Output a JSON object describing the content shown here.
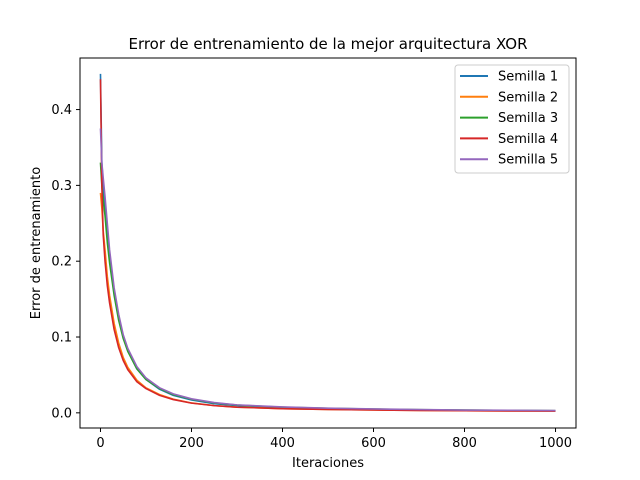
{
  "chart_data": {
    "type": "line",
    "title": "Error de entrenamiento de la mejor arquitectura XOR",
    "xlabel": "Iteraciones",
    "ylabel": "Error de entrenamiento",
    "xlim": [
      -45,
      1045
    ],
    "ylim": [
      -0.02,
      0.468
    ],
    "x_ticks": [
      0,
      200,
      400,
      600,
      800,
      1000
    ],
    "x_tick_labels": [
      "0",
      "200",
      "400",
      "600",
      "800",
      "1000"
    ],
    "y_ticks": [
      0.0,
      0.1,
      0.2,
      0.3,
      0.4
    ],
    "y_tick_labels": [
      "0.0",
      "0.1",
      "0.2",
      "0.3",
      "0.4"
    ],
    "grid": false,
    "legend_position": "top-right",
    "series": [
      {
        "name": "Semilla 1",
        "color": "#1f77b4",
        "x": [
          0,
          3,
          6,
          10,
          15,
          20,
          30,
          40,
          50,
          60,
          80,
          100,
          130,
          160,
          200,
          250,
          300,
          400,
          500,
          600,
          700,
          800,
          900,
          1000
        ],
        "y": [
          0.447,
          0.33,
          0.3,
          0.27,
          0.235,
          0.205,
          0.16,
          0.125,
          0.1,
          0.082,
          0.058,
          0.044,
          0.031,
          0.023,
          0.017,
          0.012,
          0.0095,
          0.007,
          0.0055,
          0.0045,
          0.0038,
          0.0033,
          0.003,
          0.0027
        ]
      },
      {
        "name": "Semilla 2",
        "color": "#ff7f0e",
        "x": [
          0,
          3,
          6,
          10,
          15,
          20,
          30,
          40,
          50,
          60,
          80,
          100,
          130,
          160,
          200,
          250,
          300,
          400,
          500,
          600,
          700,
          800,
          900,
          1000
        ],
        "y": [
          0.29,
          0.27,
          0.24,
          0.215,
          0.18,
          0.155,
          0.118,
          0.092,
          0.073,
          0.06,
          0.043,
          0.033,
          0.024,
          0.018,
          0.013,
          0.0095,
          0.0075,
          0.0055,
          0.0045,
          0.0038,
          0.0032,
          0.0028,
          0.0025,
          0.0023
        ]
      },
      {
        "name": "Semilla 3",
        "color": "#2ca02c",
        "x": [
          0,
          3,
          6,
          10,
          15,
          20,
          30,
          40,
          50,
          60,
          80,
          100,
          130,
          160,
          200,
          250,
          300,
          400,
          500,
          600,
          700,
          800,
          900,
          1000
        ],
        "y": [
          0.33,
          0.3,
          0.28,
          0.26,
          0.225,
          0.198,
          0.155,
          0.122,
          0.098,
          0.081,
          0.058,
          0.044,
          0.032,
          0.024,
          0.018,
          0.013,
          0.0102,
          0.0075,
          0.006,
          0.005,
          0.0042,
          0.0036,
          0.0032,
          0.0029
        ]
      },
      {
        "name": "Semilla 4",
        "color": "#d62728",
        "x": [
          0,
          3,
          6,
          10,
          15,
          20,
          30,
          40,
          50,
          60,
          80,
          100,
          130,
          160,
          200,
          250,
          300,
          400,
          500,
          600,
          700,
          800,
          900,
          1000
        ],
        "y": [
          0.44,
          0.3,
          0.235,
          0.2,
          0.168,
          0.145,
          0.11,
          0.086,
          0.069,
          0.057,
          0.041,
          0.032,
          0.023,
          0.0175,
          0.0128,
          0.0095,
          0.0075,
          0.0055,
          0.0045,
          0.0038,
          0.0032,
          0.0028,
          0.0025,
          0.0023
        ]
      },
      {
        "name": "Semilla 5",
        "color": "#9467bd",
        "x": [
          0,
          3,
          6,
          10,
          15,
          20,
          30,
          40,
          50,
          60,
          80,
          100,
          130,
          160,
          200,
          250,
          300,
          400,
          500,
          600,
          700,
          800,
          900,
          1000
        ],
        "y": [
          0.375,
          0.33,
          0.31,
          0.285,
          0.25,
          0.215,
          0.165,
          0.13,
          0.103,
          0.085,
          0.061,
          0.046,
          0.033,
          0.025,
          0.0185,
          0.0135,
          0.0105,
          0.0078,
          0.0062,
          0.0051,
          0.0043,
          0.0037,
          0.0033,
          0.003
        ]
      }
    ]
  }
}
